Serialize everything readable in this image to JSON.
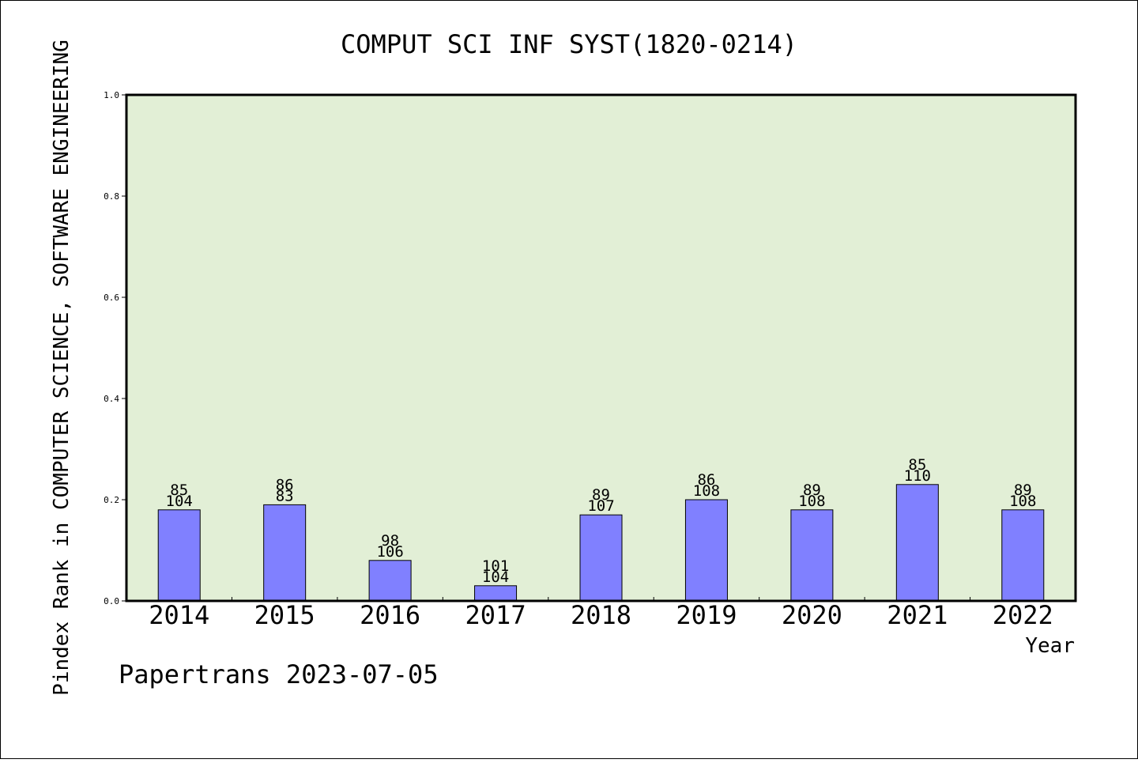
{
  "chart_data": {
    "type": "bar",
    "title": "COMPUT SCI INF SYST(1820-0214)",
    "xlabel": "Year",
    "ylabel": "Pindex Rank in COMPUTER SCIENCE, SOFTWARE ENGINEERING",
    "categories": [
      "2014",
      "2015",
      "2016",
      "2017",
      "2018",
      "2019",
      "2020",
      "2021",
      "2022"
    ],
    "values": [
      0.18,
      0.19,
      0.08,
      0.03,
      0.17,
      0.2,
      0.18,
      0.23,
      0.18
    ],
    "bar_labels_top": [
      "85",
      "86",
      "98",
      "101",
      "89",
      "86",
      "89",
      "85",
      "89"
    ],
    "bar_labels_bottom": [
      "104",
      "83",
      "106",
      "104",
      "107",
      "108",
      "108",
      "110",
      "108"
    ],
    "ylim": [
      0,
      1.0
    ],
    "yticks": [
      "0.0",
      "0.2",
      "0.4",
      "0.6",
      "0.8",
      "1.0"
    ],
    "grid": false,
    "colors": {
      "plot_background": "#e2efd6",
      "bar_fill": "#8080ff",
      "bar_stroke": "#000000"
    }
  },
  "footer": {
    "watermark": "Papertrans 2023-07-05"
  }
}
